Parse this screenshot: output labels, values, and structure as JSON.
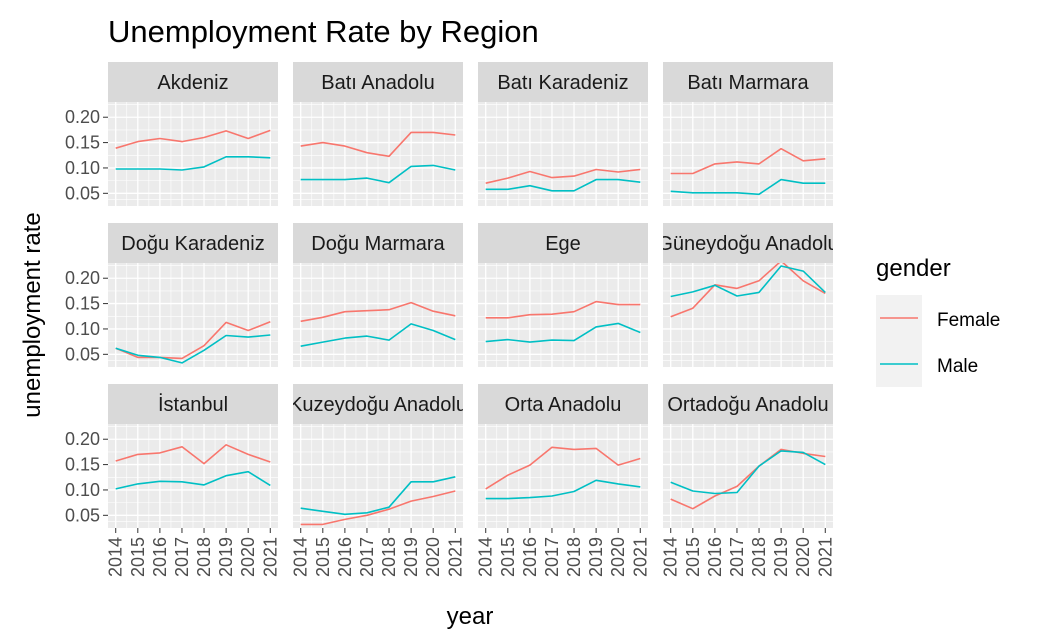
{
  "chart_data": {
    "type": "line",
    "title": "Unemployment Rate by Region",
    "xlabel": "year",
    "ylabel": "unemployment rate",
    "x": [
      2014,
      2015,
      2016,
      2017,
      2018,
      2019,
      2020,
      2021
    ],
    "y_ticks": [
      0.05,
      0.1,
      0.15,
      0.2
    ],
    "y_tick_labels": [
      "0.05",
      "0.10",
      "0.15",
      "0.20"
    ],
    "ylim": [
      0.025,
      0.23
    ],
    "xlim": [
      2013.65,
      2021.35
    ],
    "grid": true,
    "legend": {
      "title": "gender",
      "position": "right",
      "entries": [
        {
          "name": "Female",
          "color": "#F8766D"
        },
        {
          "name": "Male",
          "color": "#00BFC4"
        }
      ]
    },
    "panels": [
      {
        "name": "Akdeniz",
        "series": [
          {
            "name": "Female",
            "values": [
              0.139,
              0.152,
              0.158,
              0.152,
              0.16,
              0.173,
              0.158,
              0.174
            ]
          },
          {
            "name": "Male",
            "values": [
              0.098,
              0.098,
              0.098,
              0.096,
              0.102,
              0.122,
              0.122,
              0.12
            ]
          }
        ]
      },
      {
        "name": "Batı Anadolu",
        "series": [
          {
            "name": "Female",
            "values": [
              0.143,
              0.15,
              0.143,
              0.13,
              0.123,
              0.17,
              0.17,
              0.165
            ]
          },
          {
            "name": "Male",
            "values": [
              0.077,
              0.077,
              0.077,
              0.08,
              0.071,
              0.103,
              0.105,
              0.096
            ]
          }
        ]
      },
      {
        "name": "Batı Karadeniz",
        "series": [
          {
            "name": "Female",
            "values": [
              0.07,
              0.08,
              0.093,
              0.081,
              0.084,
              0.097,
              0.092,
              0.097
            ]
          },
          {
            "name": "Male",
            "values": [
              0.058,
              0.058,
              0.065,
              0.055,
              0.055,
              0.077,
              0.077,
              0.072
            ]
          }
        ]
      },
      {
        "name": "Batı Marmara",
        "series": [
          {
            "name": "Female",
            "values": [
              0.089,
              0.089,
              0.108,
              0.112,
              0.108,
              0.138,
              0.114,
              0.118
            ]
          },
          {
            "name": "Male",
            "values": [
              0.054,
              0.051,
              0.051,
              0.051,
              0.048,
              0.077,
              0.07,
              0.07
            ]
          }
        ]
      },
      {
        "name": "Doğu Karadeniz",
        "series": [
          {
            "name": "Female",
            "values": [
              0.062,
              0.044,
              0.044,
              0.042,
              0.067,
              0.113,
              0.097,
              0.114
            ]
          },
          {
            "name": "Male",
            "values": [
              0.062,
              0.048,
              0.044,
              0.033,
              0.058,
              0.087,
              0.084,
              0.088
            ]
          }
        ]
      },
      {
        "name": "Doğu Marmara",
        "series": [
          {
            "name": "Female",
            "values": [
              0.115,
              0.123,
              0.134,
              0.136,
              0.138,
              0.152,
              0.135,
              0.126
            ]
          },
          {
            "name": "Male",
            "values": [
              0.066,
              0.074,
              0.082,
              0.086,
              0.078,
              0.11,
              0.097,
              0.079
            ]
          }
        ]
      },
      {
        "name": "Ege",
        "series": [
          {
            "name": "Female",
            "values": [
              0.122,
              0.122,
              0.128,
              0.129,
              0.134,
              0.154,
              0.148,
              0.148
            ]
          },
          {
            "name": "Male",
            "values": [
              0.075,
              0.079,
              0.074,
              0.078,
              0.077,
              0.104,
              0.111,
              0.093
            ]
          }
        ]
      },
      {
        "name": "Güneydoğu Anadolu",
        "series": [
          {
            "name": "Female",
            "values": [
              0.124,
              0.141,
              0.187,
              0.18,
              0.195,
              0.234,
              0.195,
              0.17
            ]
          },
          {
            "name": "Male",
            "values": [
              0.164,
              0.173,
              0.186,
              0.165,
              0.172,
              0.224,
              0.214,
              0.172
            ]
          }
        ]
      },
      {
        "name": "İstanbul",
        "series": [
          {
            "name": "Female",
            "values": [
              0.157,
              0.17,
              0.173,
              0.185,
              0.152,
              0.189,
              0.17,
              0.155
            ]
          },
          {
            "name": "Male",
            "values": [
              0.102,
              0.112,
              0.117,
              0.116,
              0.11,
              0.128,
              0.136,
              0.109
            ]
          }
        ]
      },
      {
        "name": "Kuzeydoğu Anadolu",
        "series": [
          {
            "name": "Female",
            "values": [
              0.032,
              0.032,
              0.042,
              0.05,
              0.062,
              0.078,
              0.087,
              0.098
            ]
          },
          {
            "name": "Male",
            "values": [
              0.064,
              0.058,
              0.052,
              0.055,
              0.066,
              0.116,
              0.116,
              0.126
            ]
          }
        ]
      },
      {
        "name": "Orta Anadolu",
        "series": [
          {
            "name": "Female",
            "values": [
              0.102,
              0.129,
              0.149,
              0.184,
              0.18,
              0.182,
              0.149,
              0.162
            ]
          },
          {
            "name": "Male",
            "values": [
              0.083,
              0.083,
              0.085,
              0.088,
              0.097,
              0.119,
              0.112,
              0.106
            ]
          }
        ]
      },
      {
        "name": "Ortadoğu Anadolu",
        "series": [
          {
            "name": "Female",
            "values": [
              0.082,
              0.063,
              0.088,
              0.107,
              0.147,
              0.18,
              0.172,
              0.166
            ]
          },
          {
            "name": "Male",
            "values": [
              0.115,
              0.098,
              0.093,
              0.095,
              0.147,
              0.177,
              0.174,
              0.15
            ]
          }
        ]
      }
    ]
  }
}
